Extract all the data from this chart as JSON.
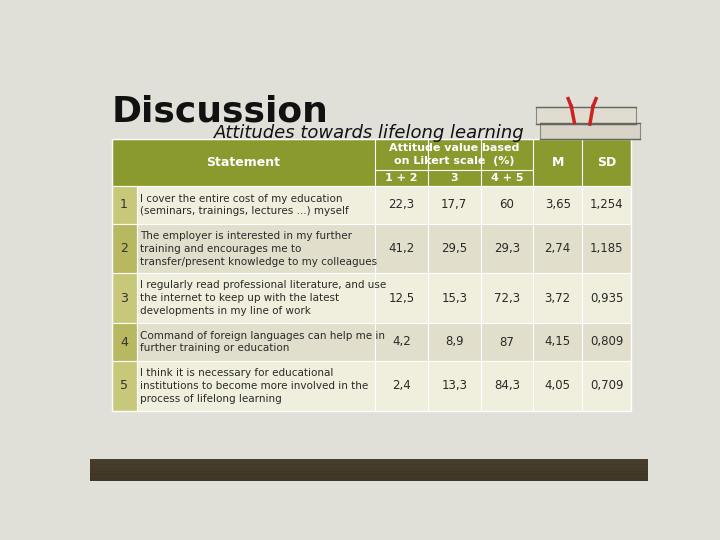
{
  "title_main": "Discussion",
  "title_sub": "Attitudes towards lifelong learning",
  "bg_color": "#e0e0d8",
  "header_color": "#8a9a2e",
  "header_text_color": "#ffffff",
  "row_light_color": "#f0eedc",
  "row_dark_color": "#e2decc",
  "num_col_color_light": "#c8c87a",
  "num_col_color_dark": "#b8b860",
  "sub_headers": [
    "1 + 2",
    "3",
    "4 + 5"
  ],
  "rows": [
    {
      "num": "1",
      "statement": "I cover the entire cost of my education\n(seminars, trainings, lectures ...) myself",
      "v12": "22,3",
      "v3": "17,7",
      "v45": "60",
      "M": "3,65",
      "SD": "1,254"
    },
    {
      "num": "2",
      "statement": "The employer is interested in my further\ntraining and encourages me to\ntransfer/present knowledge to my colleagues",
      "v12": "41,2",
      "v3": "29,5",
      "v45": "29,3",
      "M": "2,74",
      "SD": "1,185"
    },
    {
      "num": "3",
      "statement": "I regularly read professional literature, and use\nthe internet to keep up with the latest\ndevelopments in my line of work",
      "v12": "12,5",
      "v3": "15,3",
      "v45": "72,3",
      "M": "3,72",
      "SD": "0,935"
    },
    {
      "num": "4",
      "statement": "Command of foreign languages can help me in\nfurther training or education",
      "v12": "4,2",
      "v3": "8,9",
      "v45": "87",
      "M": "4,15",
      "SD": "0,809"
    },
    {
      "num": "5",
      "statement": "I think it is necessary for educational\ninstitutions to become more involved in the\nprocess of lifelong learning",
      "v12": "2,4",
      "v3": "13,3",
      "v45": "84,3",
      "M": "4,05",
      "SD": "0,709"
    }
  ]
}
